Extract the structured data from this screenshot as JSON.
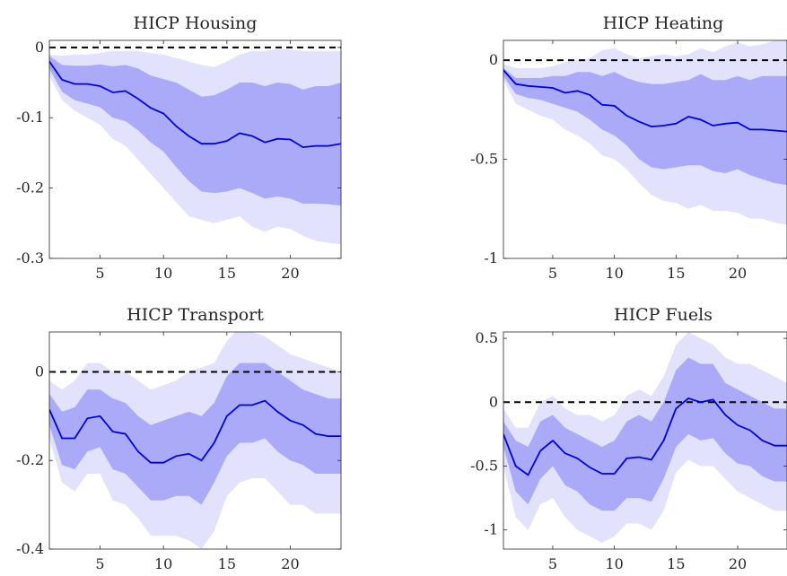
{
  "colors": {
    "line": "#0000dd",
    "band_inner": "#aaaaf8",
    "band_outer": "#e2e2fd",
    "zero_line": "#000000",
    "axis": "#262626"
  },
  "chart_data": [
    {
      "type": "line",
      "title": "HICP Housing",
      "xlim": [
        1,
        24
      ],
      "ylim": [
        -0.3,
        0.01
      ],
      "xticks": [
        5,
        10,
        15,
        20
      ],
      "yticks": [
        0,
        -0.1,
        -0.2,
        -0.3
      ],
      "ytick_labels": [
        "0",
        "-0.1",
        "-0.2",
        "-0.3"
      ],
      "zero_line": 0,
      "x": [
        1,
        2,
        3,
        4,
        5,
        6,
        7,
        8,
        9,
        10,
        11,
        12,
        13,
        14,
        15,
        16,
        17,
        18,
        19,
        20,
        21,
        22,
        23,
        24
      ],
      "series": [
        {
          "values": [
            -0.02,
            -0.046,
            -0.052,
            -0.052,
            -0.055,
            -0.064,
            -0.062,
            -0.073,
            -0.086,
            -0.094,
            -0.112,
            -0.126,
            -0.137,
            -0.137,
            -0.133,
            -0.122,
            -0.126,
            -0.135,
            -0.13,
            -0.131,
            -0.142,
            -0.14,
            -0.14,
            -0.137
          ]
        }
      ],
      "bands": [
        {
          "level": "outer",
          "upper": [
            -0.01,
            -0.012,
            -0.01,
            -0.01,
            -0.008,
            -0.005,
            -0.005,
            -0.005,
            -0.008,
            -0.01,
            -0.015,
            -0.02,
            -0.025,
            -0.028,
            -0.02,
            -0.01,
            -0.005,
            -0.005,
            -0.002,
            -0.003,
            -0.005,
            -0.005,
            -0.005,
            -0.005
          ],
          "lower": [
            -0.04,
            -0.075,
            -0.09,
            -0.1,
            -0.11,
            -0.13,
            -0.14,
            -0.16,
            -0.18,
            -0.2,
            -0.22,
            -0.24,
            -0.245,
            -0.25,
            -0.245,
            -0.24,
            -0.255,
            -0.262,
            -0.255,
            -0.258,
            -0.268,
            -0.275,
            -0.278,
            -0.28
          ]
        },
        {
          "level": "inner",
          "upper": [
            -0.012,
            -0.025,
            -0.026,
            -0.026,
            -0.024,
            -0.027,
            -0.025,
            -0.03,
            -0.04,
            -0.045,
            -0.05,
            -0.06,
            -0.07,
            -0.068,
            -0.06,
            -0.05,
            -0.05,
            -0.055,
            -0.05,
            -0.052,
            -0.06,
            -0.055,
            -0.055,
            -0.05
          ]
        },
        {
          "level": "inner_lower",
          "lower": [
            -0.03,
            -0.063,
            -0.075,
            -0.08,
            -0.085,
            -0.1,
            -0.105,
            -0.118,
            -0.135,
            -0.148,
            -0.17,
            -0.19,
            -0.205,
            -0.207,
            -0.205,
            -0.2,
            -0.207,
            -0.215,
            -0.212,
            -0.215,
            -0.222,
            -0.222,
            -0.223,
            -0.225
          ]
        }
      ]
    },
    {
      "type": "line",
      "title": "HICP Heating",
      "xlim": [
        1,
        24
      ],
      "ylim": [
        -1,
        0.1
      ],
      "xticks": [
        5,
        10,
        15,
        20
      ],
      "yticks": [
        0,
        -0.5,
        -1
      ],
      "ytick_labels": [
        "0",
        "-0.5",
        "-1"
      ],
      "zero_line": 0,
      "x": [
        1,
        2,
        3,
        4,
        5,
        6,
        7,
        8,
        9,
        10,
        11,
        12,
        13,
        14,
        15,
        16,
        17,
        18,
        19,
        20,
        21,
        22,
        23,
        24
      ],
      "series": [
        {
          "values": [
            -0.05,
            -0.12,
            -0.13,
            -0.135,
            -0.14,
            -0.165,
            -0.155,
            -0.175,
            -0.225,
            -0.23,
            -0.28,
            -0.31,
            -0.335,
            -0.33,
            -0.32,
            -0.285,
            -0.3,
            -0.33,
            -0.32,
            -0.315,
            -0.35,
            -0.35,
            -0.355,
            -0.36
          ]
        }
      ],
      "bands": [
        {
          "level": "outer",
          "upper": [
            -0.02,
            -0.04,
            -0.04,
            -0.04,
            -0.03,
            -0.01,
            0.0,
            0.01,
            0.05,
            0.06,
            0.03,
            0.01,
            0.02,
            0.03,
            0.02,
            0.03,
            0.06,
            0.04,
            0.07,
            0.09,
            0.07,
            0.08,
            0.1,
            0.1
          ]
        },
        {
          "level": "outer_lower",
          "lower": [
            -0.1,
            -0.22,
            -0.25,
            -0.28,
            -0.3,
            -0.35,
            -0.38,
            -0.42,
            -0.48,
            -0.5,
            -0.55,
            -0.62,
            -0.68,
            -0.71,
            -0.72,
            -0.75,
            -0.73,
            -0.76,
            -0.76,
            -0.77,
            -0.8,
            -0.8,
            -0.82,
            -0.83
          ]
        },
        {
          "level": "inner",
          "upper": [
            -0.04,
            -0.09,
            -0.09,
            -0.09,
            -0.08,
            -0.08,
            -0.06,
            -0.06,
            -0.08,
            -0.06,
            -0.09,
            -0.11,
            -0.12,
            -0.12,
            -0.11,
            -0.1,
            -0.07,
            -0.1,
            -0.1,
            -0.08,
            -0.1,
            -0.08,
            -0.08,
            -0.08
          ]
        },
        {
          "level": "inner_lower",
          "lower": [
            -0.08,
            -0.17,
            -0.19,
            -0.2,
            -0.22,
            -0.24,
            -0.26,
            -0.3,
            -0.35,
            -0.38,
            -0.43,
            -0.5,
            -0.54,
            -0.55,
            -0.54,
            -0.53,
            -0.53,
            -0.56,
            -0.57,
            -0.55,
            -0.58,
            -0.6,
            -0.62,
            -0.63
          ]
        }
      ]
    },
    {
      "type": "line",
      "title": "HICP Transport",
      "xlim": [
        1,
        24
      ],
      "ylim": [
        -0.4,
        0.09
      ],
      "xticks": [
        5,
        10,
        15,
        20
      ],
      "yticks": [
        0,
        -0.2,
        -0.4
      ],
      "ytick_labels": [
        "0",
        "-0.2",
        "-0.4"
      ],
      "zero_line": 0,
      "x": [
        1,
        2,
        3,
        4,
        5,
        6,
        7,
        8,
        9,
        10,
        11,
        12,
        13,
        14,
        15,
        16,
        17,
        18,
        19,
        20,
        21,
        22,
        23,
        24
      ],
      "series": [
        {
          "values": [
            -0.085,
            -0.15,
            -0.15,
            -0.105,
            -0.1,
            -0.135,
            -0.14,
            -0.18,
            -0.205,
            -0.205,
            -0.19,
            -0.185,
            -0.2,
            -0.16,
            -0.1,
            -0.075,
            -0.075,
            -0.065,
            -0.09,
            -0.11,
            -0.12,
            -0.14,
            -0.145,
            -0.145
          ]
        }
      ],
      "bands": [
        {
          "level": "outer",
          "upper": [
            -0.02,
            -0.04,
            -0.02,
            0.02,
            0.02,
            0.0,
            0.0,
            -0.02,
            -0.04,
            -0.03,
            -0.02,
            0.0,
            0.01,
            0.02,
            0.07,
            0.1,
            0.09,
            0.08,
            0.06,
            0.04,
            0.03,
            0.02,
            0.01,
            0.0
          ]
        },
        {
          "level": "outer_lower",
          "lower": [
            -0.15,
            -0.25,
            -0.27,
            -0.23,
            -0.23,
            -0.29,
            -0.3,
            -0.33,
            -0.37,
            -0.37,
            -0.37,
            -0.38,
            -0.4,
            -0.36,
            -0.28,
            -0.25,
            -0.24,
            -0.24,
            -0.27,
            -0.3,
            -0.3,
            -0.32,
            -0.32,
            -0.32
          ]
        },
        {
          "level": "inner",
          "upper": [
            -0.05,
            -0.09,
            -0.08,
            -0.04,
            -0.04,
            -0.06,
            -0.07,
            -0.1,
            -0.12,
            -0.11,
            -0.1,
            -0.09,
            -0.1,
            -0.07,
            -0.01,
            0.02,
            0.02,
            0.02,
            0.0,
            -0.02,
            -0.04,
            -0.05,
            -0.06,
            -0.06
          ]
        },
        {
          "level": "inner_lower",
          "lower": [
            -0.12,
            -0.21,
            -0.22,
            -0.18,
            -0.17,
            -0.22,
            -0.23,
            -0.26,
            -0.29,
            -0.29,
            -0.28,
            -0.28,
            -0.3,
            -0.25,
            -0.19,
            -0.16,
            -0.16,
            -0.15,
            -0.18,
            -0.2,
            -0.21,
            -0.23,
            -0.23,
            -0.23
          ]
        }
      ]
    },
    {
      "type": "line",
      "title": "HICP Fuels",
      "xlim": [
        1,
        24
      ],
      "ylim": [
        -1.15,
        0.55
      ],
      "xticks": [
        5,
        10,
        15,
        20
      ],
      "yticks": [
        0.5,
        0,
        -0.5,
        -1
      ],
      "ytick_labels": [
        "0.5",
        "0",
        "-0.5",
        "-1"
      ],
      "zero_line": 0,
      "x": [
        1,
        2,
        3,
        4,
        5,
        6,
        7,
        8,
        9,
        10,
        11,
        12,
        13,
        14,
        15,
        16,
        17,
        18,
        19,
        20,
        21,
        22,
        23,
        24
      ],
      "series": [
        {
          "values": [
            -0.25,
            -0.5,
            -0.57,
            -0.38,
            -0.3,
            -0.4,
            -0.44,
            -0.51,
            -0.56,
            -0.56,
            -0.44,
            -0.43,
            -0.45,
            -0.3,
            -0.05,
            0.03,
            0.0,
            0.02,
            -0.1,
            -0.18,
            -0.22,
            -0.3,
            -0.34,
            -0.34
          ]
        }
      ],
      "bands": [
        {
          "level": "outer",
          "upper": [
            -0.05,
            -0.2,
            -0.2,
            0.0,
            0.05,
            -0.05,
            -0.1,
            -0.1,
            -0.15,
            -0.1,
            0.05,
            0.1,
            0.05,
            0.2,
            0.45,
            0.55,
            0.5,
            0.45,
            0.35,
            0.3,
            0.3,
            0.25,
            0.2,
            0.15
          ]
        },
        {
          "level": "outer_lower",
          "lower": [
            -0.5,
            -0.9,
            -1.0,
            -0.8,
            -0.75,
            -0.9,
            -1.0,
            -1.05,
            -1.1,
            -1.05,
            -0.95,
            -0.95,
            -1.0,
            -0.85,
            -0.55,
            -0.45,
            -0.5,
            -0.5,
            -0.6,
            -0.7,
            -0.75,
            -0.8,
            -0.85,
            -0.85
          ]
        },
        {
          "level": "inner",
          "upper": [
            -0.15,
            -0.3,
            -0.35,
            -0.15,
            -0.1,
            -0.2,
            -0.25,
            -0.3,
            -0.35,
            -0.3,
            -0.15,
            -0.1,
            -0.15,
            0.0,
            0.25,
            0.35,
            0.3,
            0.3,
            0.15,
            0.1,
            0.05,
            0.0,
            -0.05,
            -0.05
          ]
        },
        {
          "level": "inner_lower",
          "lower": [
            -0.35,
            -0.7,
            -0.8,
            -0.6,
            -0.5,
            -0.65,
            -0.7,
            -0.8,
            -0.85,
            -0.85,
            -0.75,
            -0.75,
            -0.78,
            -0.6,
            -0.35,
            -0.25,
            -0.3,
            -0.28,
            -0.4,
            -0.48,
            -0.5,
            -0.58,
            -0.62,
            -0.62
          ]
        }
      ]
    }
  ]
}
